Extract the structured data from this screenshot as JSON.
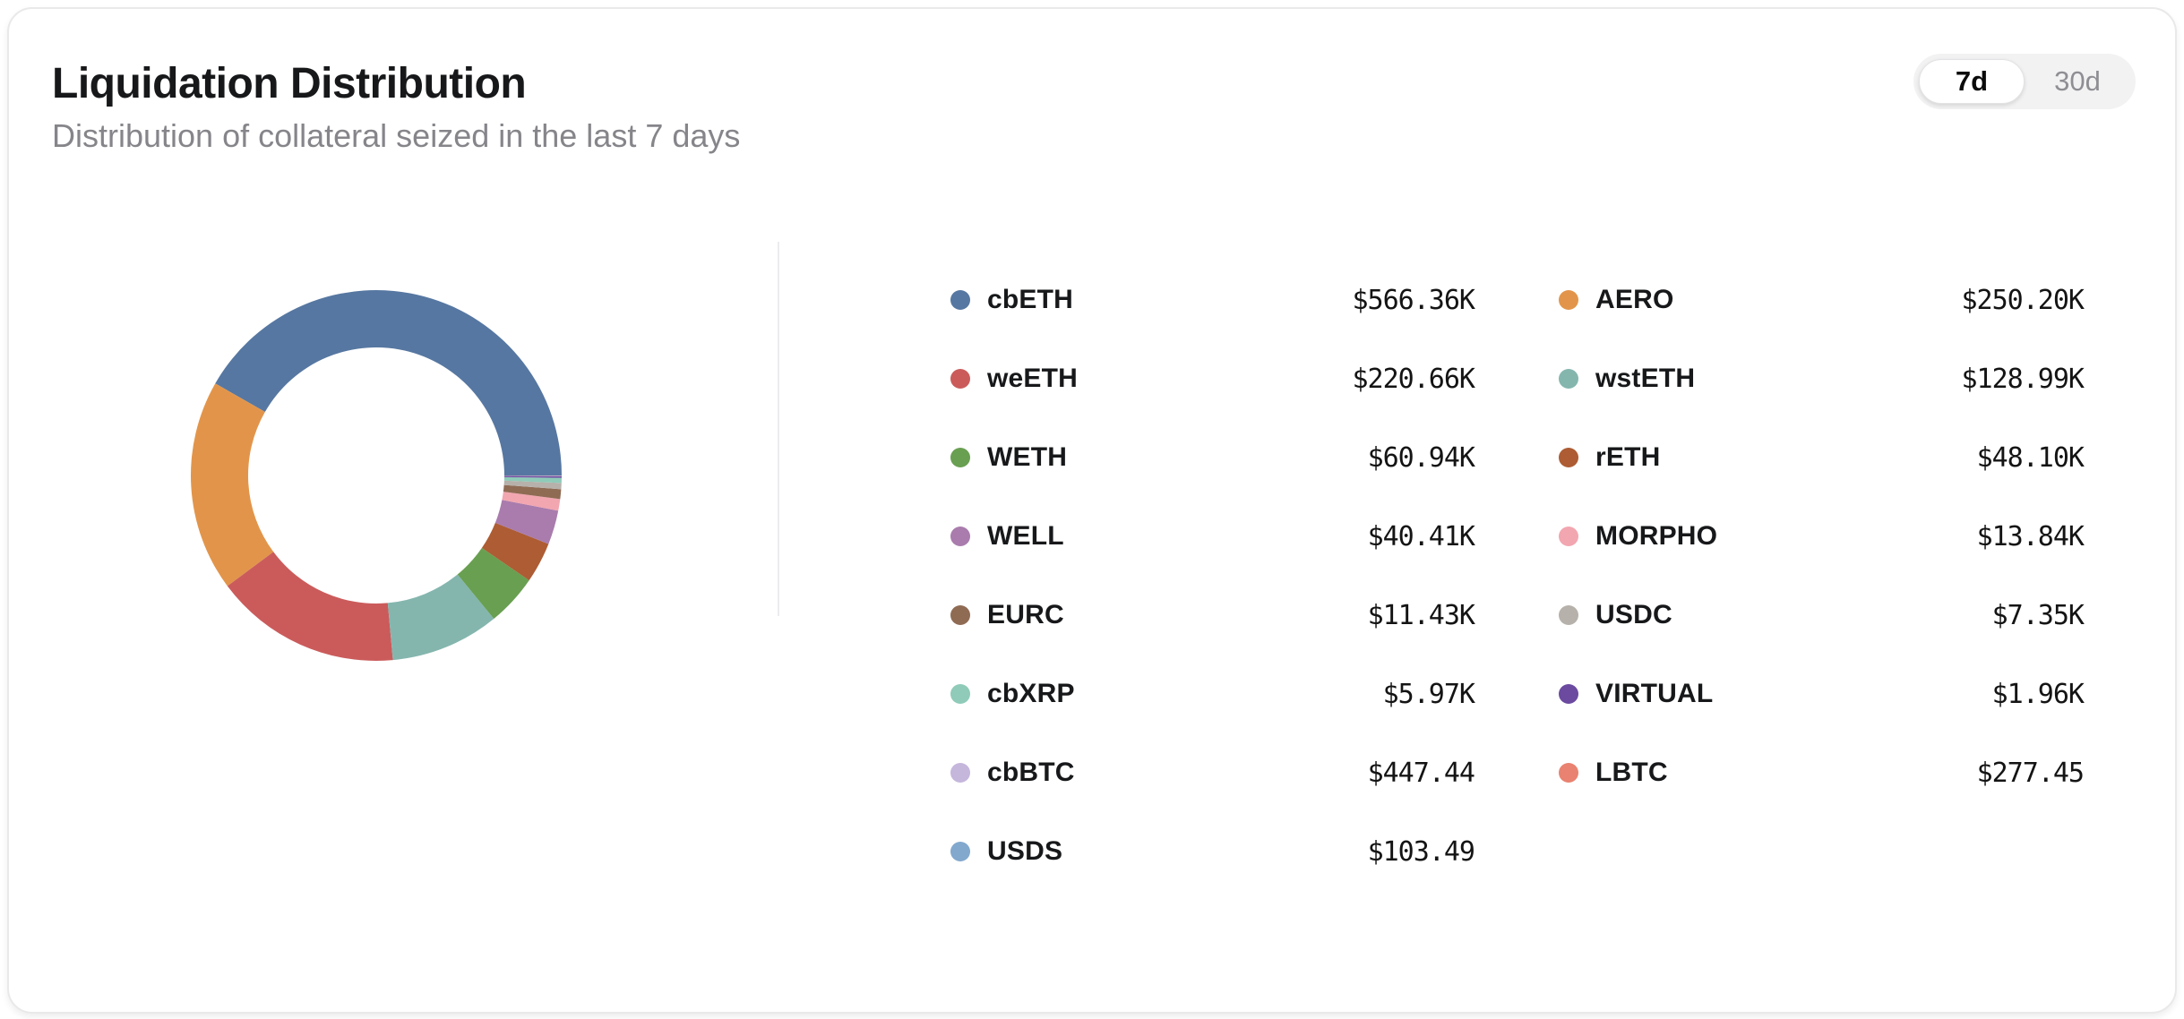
{
  "card": {
    "title": "Liquidation Distribution",
    "subtitle": "Distribution of collateral seized in the last 7 days",
    "toggle": {
      "options": [
        "7d",
        "30d"
      ],
      "selected": "7d"
    }
  },
  "chart_data": {
    "type": "pie",
    "title": "Liquidation Distribution",
    "subtitle": "Distribution of collateral seized in the last 7 days",
    "unit": "USD",
    "donut": true,
    "inner_radius_ratio": 0.69,
    "start_angle_deg": 0,
    "direction": "counterclockwise",
    "legend_position": "right",
    "legend_columns": 2,
    "items": [
      {
        "label": "cbETH",
        "value_usd": 566360,
        "display": "$566.36K",
        "color": "#5677a1"
      },
      {
        "label": "AERO",
        "value_usd": 250200,
        "display": "$250.20K",
        "color": "#e2954a"
      },
      {
        "label": "weETH",
        "value_usd": 220660,
        "display": "$220.66K",
        "color": "#cb5b5b"
      },
      {
        "label": "wstETH",
        "value_usd": 128990,
        "display": "$128.99K",
        "color": "#84b6ae"
      },
      {
        "label": "WETH",
        "value_usd": 60940,
        "display": "$60.94K",
        "color": "#699f51"
      },
      {
        "label": "rETH",
        "value_usd": 48100,
        "display": "$48.10K",
        "color": "#ad5c33"
      },
      {
        "label": "WELL",
        "value_usd": 40410,
        "display": "$40.41K",
        "color": "#a97cad"
      },
      {
        "label": "MORPHO",
        "value_usd": 13840,
        "display": "$13.84K",
        "color": "#f2a6b0"
      },
      {
        "label": "EURC",
        "value_usd": 11430,
        "display": "$11.43K",
        "color": "#8f6b54"
      },
      {
        "label": "USDC",
        "value_usd": 7350,
        "display": "$7.35K",
        "color": "#b6b1aa"
      },
      {
        "label": "cbXRP",
        "value_usd": 5970,
        "display": "$5.97K",
        "color": "#8fcbb8"
      },
      {
        "label": "VIRTUAL",
        "value_usd": 1960,
        "display": "$1.96K",
        "color": "#6b4aa0"
      },
      {
        "label": "cbBTC",
        "value_usd": 447.44,
        "display": "$447.44",
        "color": "#c5b6dc"
      },
      {
        "label": "LBTC",
        "value_usd": 277.45,
        "display": "$277.45",
        "color": "#e98270"
      },
      {
        "label": "USDS",
        "value_usd": 103.49,
        "display": "$103.49",
        "color": "#82a8cd"
      }
    ]
  }
}
